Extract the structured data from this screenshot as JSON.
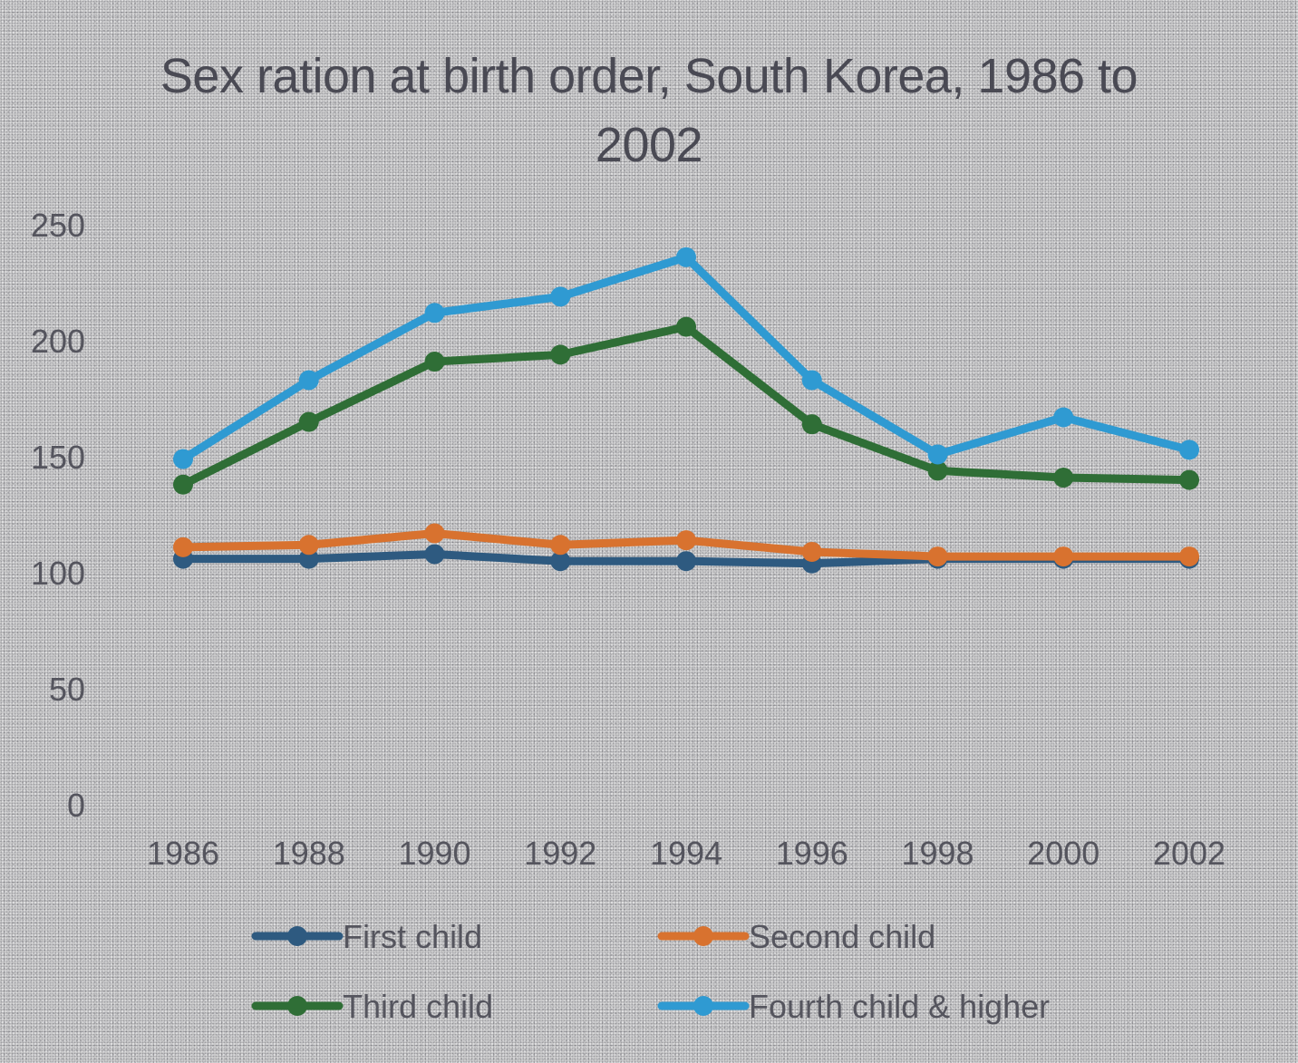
{
  "chart_data": {
    "type": "line",
    "title": "Sex ration at birth order, South Korea, 1986 to 2002",
    "xlabel": "",
    "ylabel": "",
    "categories": [
      "1986",
      "1988",
      "1990",
      "1992",
      "1994",
      "1996",
      "1998",
      "2000",
      "2002"
    ],
    "ylim": [
      0,
      250
    ],
    "yticks": [
      "0",
      "50",
      "100",
      "150",
      "200",
      "250"
    ],
    "grid": false,
    "legend_position": "bottom",
    "series": [
      {
        "name": "First child",
        "color": "#2e5a80",
        "values": [
          106,
          106,
          108,
          105,
          105,
          104,
          106,
          106,
          106
        ]
      },
      {
        "name": "Second child",
        "color": "#d8722f",
        "values": [
          111,
          112,
          117,
          112,
          114,
          109,
          107,
          107,
          107
        ]
      },
      {
        "name": "Third child",
        "color": "#2f6e36",
        "values": [
          138,
          165,
          191,
          194,
          206,
          164,
          144,
          141,
          140
        ]
      },
      {
        "name": "Fourth child & higher",
        "color": "#2f9ad2",
        "values": [
          149,
          183,
          212,
          219,
          236,
          183,
          151,
          167,
          153
        ]
      }
    ]
  }
}
